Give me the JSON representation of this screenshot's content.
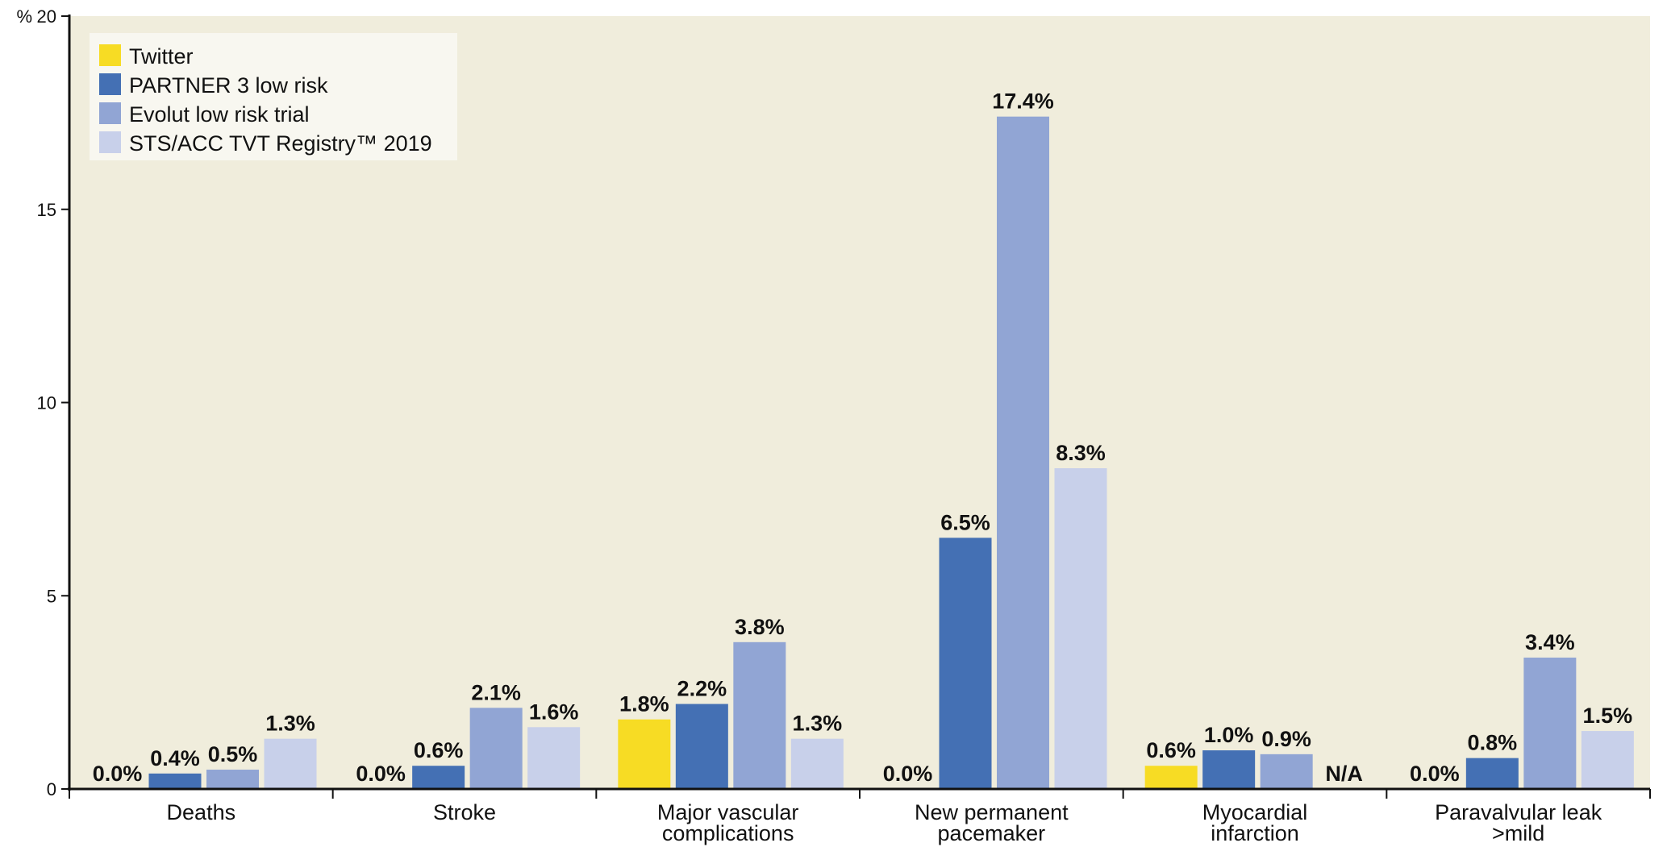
{
  "chart_data": {
    "type": "bar",
    "title": "",
    "xlabel": "",
    "ylabel": "%",
    "ylim": [
      0,
      20
    ],
    "yticks": [
      0,
      5,
      10,
      15,
      20
    ],
    "grid": false,
    "legend_position": "top-left",
    "categories": [
      [
        "Deaths"
      ],
      [
        "Stroke"
      ],
      [
        "Major vascular",
        "complications"
      ],
      [
        "New permanent",
        "pacemaker"
      ],
      [
        "Myocardial",
        "infarction"
      ],
      [
        "Paravalvular leak",
        ">mild"
      ]
    ],
    "series": [
      {
        "name": "Twitter",
        "color": "#F7DC24",
        "values": [
          0.0,
          0.0,
          1.8,
          0.0,
          0.6,
          0.0
        ],
        "labels": [
          "0.0%",
          "0.0%",
          "1.8%",
          "0.0%",
          "0.6%",
          "0.0%"
        ]
      },
      {
        "name": "PARTNER 3 low risk",
        "color": "#4470B4",
        "values": [
          0.4,
          0.6,
          2.2,
          6.5,
          1.0,
          0.8
        ],
        "labels": [
          "0.4%",
          "0.6%",
          "2.2%",
          "6.5%",
          "1.0%",
          "0.8%"
        ]
      },
      {
        "name": "Evolut low risk trial",
        "color": "#91A5D4",
        "values": [
          0.5,
          2.1,
          3.8,
          17.4,
          0.9,
          3.4
        ],
        "labels": [
          "0.5%",
          "2.1%",
          "3.8%",
          "17.4%",
          "0.9%",
          "3.4%"
        ]
      },
      {
        "name": "STS/ACC TVT Registry™ 2019",
        "color": "#C8D0EA",
        "values": [
          1.3,
          1.6,
          1.3,
          8.3,
          null,
          1.5
        ],
        "labels": [
          "1.3%",
          "1.6%",
          "1.3%",
          "8.3%",
          "N/A",
          "1.5%"
        ]
      }
    ],
    "colors": {
      "plot_bg": "#F0EDDC",
      "legend_bg": "#F8F7F0",
      "axis": "#111111"
    }
  }
}
